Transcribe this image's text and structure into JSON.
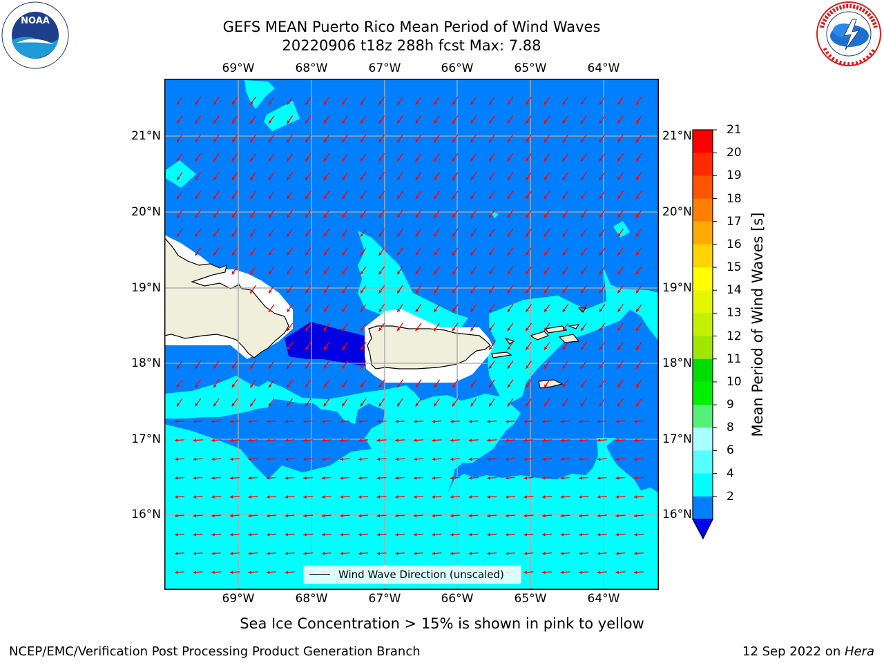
{
  "title_line1": "GEFS MEAN Puerto Rico Mean Period of Wind Waves",
  "title_line2": "20220906 t18z 288h fcst   Max: 7.88",
  "lon_labels": [
    "69°W",
    "68°W",
    "67°W",
    "66°W",
    "65°W",
    "64°W"
  ],
  "lat_labels": [
    "21°N",
    "20°N",
    "19°N",
    "18°N",
    "17°N",
    "16°N"
  ],
  "legend_label": "Wind Wave Direction (unscaled)",
  "colorbar": {
    "title": "Mean Period of Wind Waves [s]",
    "ticks": [
      "21",
      "20",
      "19",
      "18",
      "17",
      "16",
      "15",
      "14",
      "13",
      "12",
      "11",
      "10",
      "9",
      "8",
      "6",
      "4",
      "2"
    ],
    "colors": [
      "#ff0000",
      "#ff2a00",
      "#ff5500",
      "#ff8000",
      "#ffaa00",
      "#ffd400",
      "#ffff00",
      "#e5f700",
      "#c4ef00",
      "#a0e600",
      "#00dc00",
      "#00f000",
      "#55f077",
      "#aaffff",
      "#55ffff",
      "#00ffff",
      "#0080ff"
    ],
    "under_color": "#0000ee"
  },
  "colors": {
    "level_2_4": "#0080ff",
    "level_4_6": "#00ffff",
    "level_below_2": "#0000e0",
    "land": "#efefdc",
    "arrow": "#ff0000"
  },
  "sea_ice_note": "Sea Ice Concentration > 15% is shown in pink to yellow",
  "footer_left": "NCEP/EMC/Verification Post Processing Product Generation Branch",
  "footer_right_date": "12 Sep 2022 on ",
  "footer_right_host": "Hera",
  "logos": {
    "left": "noaa-logo",
    "right": "national-weather-service-logo"
  }
}
